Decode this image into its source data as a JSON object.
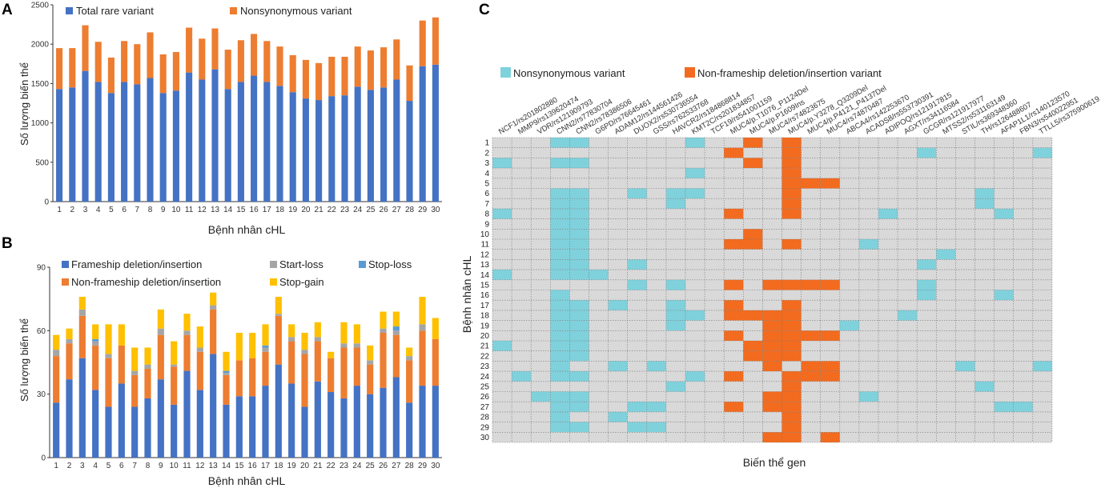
{
  "colors": {
    "blue": "#4472C4",
    "orange": "#ED7D31",
    "gray": "#A5A5A5",
    "lightblue": "#5B9BD5",
    "yellow": "#FFC000",
    "cyan": "#7FD1DC",
    "heatOrange": "#F26B1F",
    "heatBg": "#D9D9D9"
  },
  "chart_data": [
    {
      "panel": "A",
      "type": "bar",
      "stacked": true,
      "xlabel": "Bệnh nhân cHL",
      "ylabel": "Số lượng biến thể",
      "ylim": [
        0,
        2500
      ],
      "yticks": [
        0,
        500,
        1000,
        1500,
        2000,
        2500
      ],
      "legend_position": "top",
      "categories": [
        "1",
        "2",
        "3",
        "4",
        "5",
        "6",
        "7",
        "8",
        "9",
        "10",
        "11",
        "12",
        "13",
        "14",
        "15",
        "16",
        "17",
        "18",
        "19",
        "20",
        "21",
        "22",
        "23",
        "24",
        "25",
        "26",
        "27",
        "28",
        "29",
        "30"
      ],
      "series": [
        {
          "name": "Total rare variant",
          "color": "#4472C4",
          "values": [
            1430,
            1450,
            1660,
            1520,
            1380,
            1520,
            1490,
            1570,
            1380,
            1410,
            1640,
            1550,
            1680,
            1430,
            1520,
            1600,
            1520,
            1470,
            1390,
            1310,
            1290,
            1340,
            1350,
            1460,
            1420,
            1450,
            1550,
            1280,
            1720,
            1740
          ]
        },
        {
          "name": "Nonsynonymous variant",
          "color": "#ED7D31",
          "values": [
            520,
            500,
            580,
            510,
            450,
            520,
            510,
            580,
            490,
            490,
            570,
            520,
            520,
            500,
            530,
            530,
            520,
            500,
            470,
            490,
            470,
            500,
            490,
            510,
            500,
            510,
            510,
            450,
            580,
            600
          ]
        }
      ]
    },
    {
      "panel": "B",
      "type": "bar",
      "stacked": true,
      "xlabel": "Bệnh nhân cHL",
      "ylabel": "Số lượng biến thể",
      "ylim": [
        0,
        90
      ],
      "yticks": [
        0,
        30,
        60,
        90
      ],
      "legend_position": "top",
      "categories": [
        "1",
        "2",
        "3",
        "4",
        "5",
        "6",
        "7",
        "8",
        "9",
        "10",
        "11",
        "12",
        "13",
        "14",
        "15",
        "16",
        "17",
        "18",
        "19",
        "20",
        "21",
        "22",
        "23",
        "24",
        "25",
        "26",
        "27",
        "28",
        "29",
        "30"
      ],
      "series": [
        {
          "name": "Frameship deletion/insertion",
          "color": "#4472C4",
          "values": [
            26,
            37,
            47,
            32,
            24,
            35,
            24,
            28,
            37,
            25,
            41,
            32,
            49,
            25,
            29,
            29,
            34,
            44,
            35,
            24,
            36,
            31,
            28,
            34,
            30,
            33,
            38,
            26,
            34,
            34
          ]
        },
        {
          "name": "Non-frameship deletion/insertion",
          "color": "#ED7D31",
          "values": [
            22,
            17,
            20,
            21,
            23,
            18,
            15,
            14,
            21,
            18,
            17,
            18,
            21,
            14,
            17,
            18,
            16,
            23,
            20,
            25,
            19,
            16,
            24,
            18,
            14,
            26,
            20,
            20,
            26,
            22
          ]
        },
        {
          "name": "Start-loss",
          "color": "#A5A5A5",
          "values": [
            3,
            2,
            3,
            2,
            2,
            0,
            2,
            2,
            3,
            1,
            2,
            2,
            2,
            1,
            0,
            0,
            2,
            1,
            2,
            2,
            2,
            0,
            2,
            2,
            2,
            2,
            2,
            2,
            3,
            0
          ]
        },
        {
          "name": "Stop-loss",
          "color": "#5B9BD5",
          "values": [
            0,
            0,
            0,
            1,
            0,
            0,
            0,
            0,
            0,
            0,
            0,
            0,
            0,
            1,
            0,
            0,
            1,
            0,
            0,
            0,
            0,
            0,
            0,
            0,
            0,
            0,
            2,
            0,
            0,
            0
          ]
        },
        {
          "name": "Stop-gain",
          "color": "#FFC000",
          "values": [
            7,
            5,
            6,
            7,
            14,
            10,
            11,
            8,
            9,
            11,
            8,
            10,
            6,
            9,
            13,
            12,
            10,
            8,
            6,
            8,
            7,
            3,
            10,
            9,
            7,
            8,
            7,
            4,
            13,
            10
          ]
        }
      ]
    },
    {
      "panel": "C",
      "type": "heatmap",
      "xlabel": "Biến thể gen",
      "ylabel": "Bệnh nhân cHL",
      "legend_position": "top",
      "legend": [
        {
          "name": "Nonsynonymous variant",
          "color": "#7FD1DC",
          "code": 1
        },
        {
          "name": "Non-frameship deletion/insertion variant",
          "color": "#F26B1F",
          "code": 2
        }
      ],
      "columns": [
        "NCF1/rs201802880",
        "MMP9/rs139620474",
        "VDR/rs121909793",
        "CNN2/rs77830704",
        "CNN2/rs78386506",
        "G6PD/rs76645461",
        "ADAM12/rs144561426",
        "DUOX2/rs530736554",
        "GSS/rs762533768",
        "HAVCR2/rs184868814",
        "KMT2C/rs201834857",
        "TCF19/rs541001159",
        "MUC4/p.T1076_P1124Del",
        "MUC4/p.P1609Ins",
        "MUC4/rs74823675",
        "MUC4/p.Y3278_Q3209Del",
        "MUC4/p.P4121_P4137Del",
        "MUC4/rs74870487",
        "ABCA4/rs142253670",
        "ACADS8/rs553730391",
        "ADIPOQ/rs121917815",
        "AGXT/rs34116584",
        "GCGR/rs121917977",
        "MTSS2/rs531163149",
        "STIL/rs369348360",
        "TH/rs126488607",
        "AFAP1L1/rs140123570",
        "FBN3/rs540022951",
        "TTLL5/rs375900619"
      ],
      "rows": [
        "1",
        "2",
        "3",
        "4",
        "5",
        "6",
        "7",
        "8",
        "9",
        "10",
        "11",
        "12",
        "13",
        "14",
        "15",
        "16",
        "17",
        "18",
        "19",
        "20",
        "21",
        "22",
        "23",
        "24",
        "25",
        "26",
        "27",
        "28",
        "29",
        "30"
      ],
      "matrix": [
        [
          0,
          0,
          0,
          1,
          1,
          0,
          0,
          0,
          0,
          0,
          1,
          0,
          0,
          2,
          0,
          2,
          0,
          0,
          0,
          0,
          0,
          0,
          0,
          0,
          0,
          0,
          0,
          0,
          0
        ],
        [
          0,
          0,
          0,
          0,
          0,
          0,
          0,
          0,
          0,
          0,
          0,
          0,
          2,
          0,
          0,
          2,
          0,
          0,
          0,
          0,
          0,
          0,
          1,
          0,
          0,
          0,
          0,
          0,
          1
        ],
        [
          1,
          0,
          0,
          1,
          1,
          0,
          0,
          0,
          0,
          0,
          0,
          0,
          0,
          2,
          0,
          2,
          0,
          0,
          0,
          0,
          0,
          0,
          0,
          0,
          0,
          0,
          0,
          0,
          0
        ],
        [
          0,
          0,
          0,
          0,
          0,
          0,
          0,
          0,
          0,
          0,
          1,
          0,
          0,
          0,
          0,
          2,
          0,
          0,
          0,
          0,
          0,
          0,
          0,
          0,
          0,
          0,
          0,
          0,
          0
        ],
        [
          0,
          0,
          0,
          0,
          0,
          0,
          0,
          0,
          0,
          0,
          0,
          0,
          0,
          0,
          0,
          2,
          2,
          2,
          0,
          0,
          0,
          0,
          0,
          0,
          0,
          0,
          0,
          0,
          0
        ],
        [
          0,
          0,
          0,
          1,
          1,
          0,
          0,
          1,
          0,
          1,
          1,
          0,
          0,
          0,
          0,
          2,
          0,
          0,
          0,
          0,
          0,
          0,
          0,
          0,
          0,
          1,
          0,
          0,
          0
        ],
        [
          0,
          0,
          0,
          1,
          1,
          0,
          0,
          0,
          0,
          1,
          0,
          0,
          0,
          0,
          0,
          2,
          0,
          0,
          0,
          0,
          0,
          0,
          0,
          0,
          0,
          1,
          0,
          0,
          0
        ],
        [
          1,
          0,
          0,
          1,
          1,
          0,
          0,
          0,
          0,
          0,
          0,
          0,
          2,
          0,
          0,
          2,
          0,
          0,
          0,
          0,
          1,
          0,
          0,
          0,
          0,
          0,
          1,
          0,
          0
        ],
        [
          0,
          0,
          0,
          1,
          1,
          0,
          0,
          0,
          0,
          0,
          0,
          0,
          0,
          0,
          0,
          0,
          0,
          0,
          0,
          0,
          0,
          0,
          0,
          0,
          0,
          0,
          0,
          0,
          0
        ],
        [
          0,
          0,
          0,
          1,
          1,
          0,
          0,
          0,
          0,
          0,
          0,
          0,
          0,
          2,
          0,
          0,
          0,
          0,
          0,
          0,
          0,
          0,
          0,
          0,
          0,
          0,
          0,
          0,
          0
        ],
        [
          0,
          0,
          0,
          1,
          1,
          0,
          0,
          0,
          0,
          0,
          0,
          0,
          2,
          2,
          0,
          2,
          0,
          0,
          0,
          1,
          0,
          0,
          0,
          0,
          0,
          0,
          0,
          0,
          0
        ],
        [
          0,
          0,
          0,
          1,
          1,
          0,
          0,
          0,
          0,
          0,
          0,
          0,
          0,
          0,
          0,
          0,
          0,
          0,
          0,
          0,
          0,
          0,
          0,
          1,
          0,
          0,
          0,
          0,
          0
        ],
        [
          0,
          0,
          0,
          1,
          1,
          0,
          0,
          1,
          0,
          0,
          0,
          0,
          0,
          0,
          0,
          0,
          0,
          0,
          0,
          0,
          0,
          0,
          1,
          0,
          0,
          0,
          0,
          0,
          0
        ],
        [
          1,
          0,
          0,
          1,
          1,
          1,
          0,
          0,
          0,
          0,
          0,
          0,
          0,
          0,
          0,
          0,
          0,
          0,
          0,
          0,
          0,
          0,
          0,
          0,
          0,
          0,
          0,
          0,
          0
        ],
        [
          0,
          0,
          0,
          0,
          0,
          0,
          0,
          1,
          0,
          1,
          0,
          0,
          2,
          0,
          2,
          2,
          2,
          2,
          0,
          0,
          0,
          0,
          1,
          0,
          0,
          0,
          0,
          0,
          0
        ],
        [
          0,
          0,
          0,
          1,
          0,
          0,
          0,
          0,
          0,
          0,
          0,
          0,
          0,
          0,
          0,
          0,
          0,
          0,
          0,
          0,
          0,
          0,
          1,
          0,
          0,
          0,
          1,
          0,
          0
        ],
        [
          0,
          0,
          0,
          1,
          1,
          0,
          1,
          0,
          0,
          1,
          0,
          0,
          2,
          0,
          0,
          2,
          0,
          0,
          0,
          0,
          0,
          0,
          0,
          0,
          0,
          0,
          0,
          0,
          0
        ],
        [
          0,
          0,
          0,
          1,
          1,
          0,
          0,
          0,
          0,
          1,
          1,
          0,
          2,
          2,
          2,
          2,
          0,
          0,
          0,
          0,
          0,
          1,
          0,
          0,
          0,
          0,
          0,
          0,
          0
        ],
        [
          0,
          0,
          0,
          1,
          1,
          0,
          0,
          0,
          0,
          1,
          0,
          0,
          0,
          0,
          2,
          2,
          0,
          0,
          1,
          0,
          0,
          0,
          0,
          0,
          0,
          0,
          0,
          0,
          0
        ],
        [
          0,
          0,
          0,
          1,
          1,
          0,
          0,
          0,
          0,
          0,
          0,
          0,
          2,
          0,
          2,
          2,
          2,
          2,
          0,
          0,
          0,
          0,
          0,
          0,
          0,
          0,
          0,
          0,
          0
        ],
        [
          1,
          0,
          0,
          1,
          1,
          0,
          0,
          0,
          0,
          0,
          0,
          0,
          0,
          2,
          2,
          2,
          0,
          0,
          0,
          0,
          0,
          0,
          0,
          0,
          0,
          0,
          0,
          0,
          0
        ],
        [
          0,
          0,
          0,
          1,
          1,
          0,
          0,
          0,
          0,
          0,
          0,
          0,
          0,
          2,
          2,
          2,
          0,
          0,
          0,
          0,
          0,
          0,
          0,
          0,
          0,
          0,
          0,
          0,
          0
        ],
        [
          0,
          0,
          0,
          1,
          0,
          0,
          1,
          0,
          1,
          0,
          0,
          0,
          0,
          0,
          2,
          0,
          2,
          2,
          0,
          0,
          0,
          0,
          0,
          0,
          1,
          0,
          0,
          0,
          1
        ],
        [
          0,
          1,
          0,
          1,
          1,
          0,
          0,
          0,
          0,
          0,
          1,
          0,
          2,
          0,
          0,
          2,
          2,
          2,
          0,
          0,
          0,
          0,
          0,
          0,
          0,
          0,
          0,
          0,
          0
        ],
        [
          0,
          0,
          0,
          0,
          0,
          0,
          0,
          0,
          0,
          1,
          0,
          0,
          0,
          0,
          0,
          2,
          0,
          0,
          0,
          0,
          0,
          0,
          0,
          0,
          0,
          1,
          0,
          0,
          0
        ],
        [
          0,
          0,
          1,
          1,
          1,
          0,
          0,
          0,
          0,
          0,
          0,
          0,
          0,
          0,
          2,
          2,
          0,
          0,
          0,
          1,
          0,
          0,
          0,
          0,
          0,
          0,
          0,
          0,
          0
        ],
        [
          0,
          0,
          0,
          1,
          1,
          0,
          0,
          1,
          1,
          0,
          0,
          0,
          2,
          0,
          2,
          2,
          0,
          0,
          0,
          0,
          0,
          0,
          0,
          0,
          0,
          0,
          1,
          1,
          0
        ],
        [
          0,
          0,
          0,
          1,
          0,
          0,
          1,
          0,
          0,
          0,
          0,
          0,
          0,
          0,
          0,
          2,
          0,
          0,
          0,
          0,
          0,
          0,
          0,
          0,
          0,
          0,
          0,
          0,
          0
        ],
        [
          0,
          0,
          0,
          1,
          1,
          0,
          0,
          1,
          1,
          0,
          0,
          0,
          0,
          0,
          0,
          2,
          0,
          0,
          0,
          0,
          0,
          0,
          0,
          0,
          0,
          0,
          0,
          0,
          0
        ],
        [
          0,
          0,
          0,
          0,
          0,
          0,
          0,
          0,
          0,
          0,
          0,
          0,
          0,
          0,
          2,
          2,
          0,
          2,
          0,
          0,
          0,
          0,
          0,
          0,
          0,
          0,
          0,
          0,
          0
        ]
      ]
    }
  ]
}
